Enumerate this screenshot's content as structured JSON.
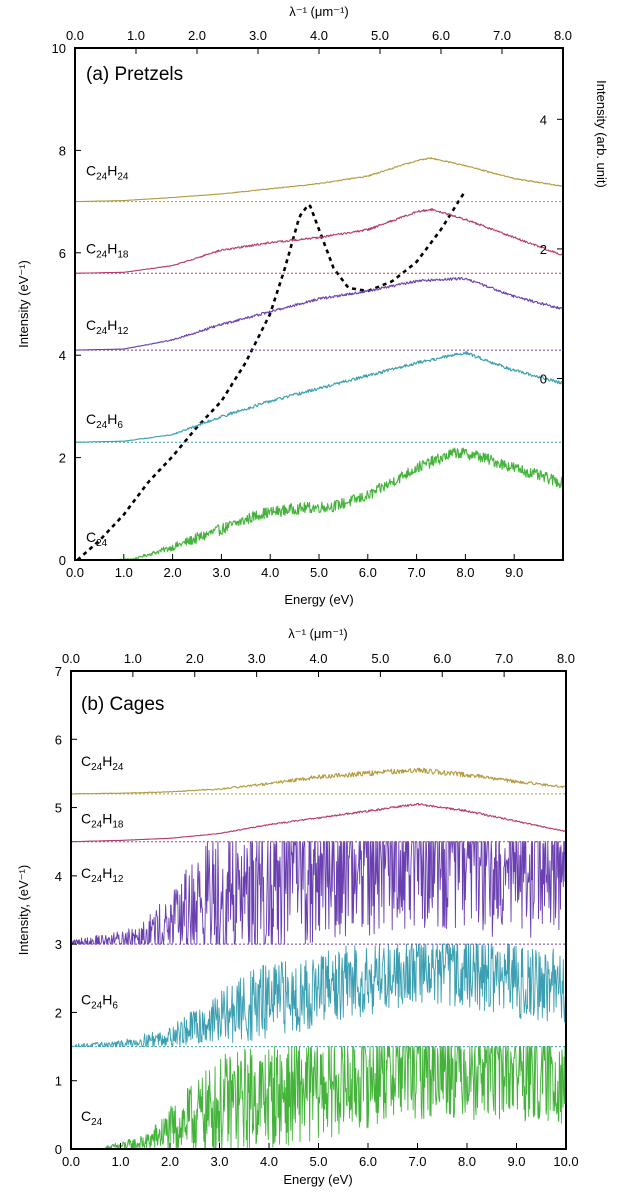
{
  "chart_data": [
    {
      "type": "line",
      "title": "(a) Pretzels",
      "xlabel": "Energy (eV)",
      "ylabel": "Intensity (eV⁻¹)",
      "top_xlabel": "λ⁻¹ (μm⁻¹)",
      "right_ylabel": "Intensity (arb. unit)",
      "xlim": [
        0,
        10
      ],
      "ylim": [
        0,
        10
      ],
      "x_ticks": [
        "0.0",
        "1.0",
        "2.0",
        "3.0",
        "4.0",
        "5.0",
        "6.0",
        "7.0",
        "8.0",
        "9.0"
      ],
      "y_ticks": [
        "0",
        "2",
        "4",
        "6",
        "8",
        "10"
      ],
      "top_ticks": [
        "0.0",
        "1.0",
        "2.0",
        "3.0",
        "4.0",
        "5.0",
        "6.0",
        "7.0",
        "8.0"
      ],
      "top_xlim": [
        0,
        8
      ],
      "right_ticks": [
        "0",
        "2",
        "4"
      ],
      "right_ylim": [
        -2.8,
        5.1
      ],
      "series": [
        {
          "name": "C24",
          "color": "#43b33a",
          "offset": 0,
          "noise": 0.22,
          "points": [
            [
              0.7,
              0
            ],
            [
              1.2,
              0.02
            ],
            [
              2,
              0.25
            ],
            [
              3,
              0.6
            ],
            [
              3.8,
              0.9
            ],
            [
              4.5,
              1
            ],
            [
              5.3,
              1.05
            ],
            [
              6,
              1.25
            ],
            [
              7,
              1.8
            ],
            [
              7.8,
              2.1
            ],
            [
              8.2,
              2.05
            ],
            [
              9,
              1.8
            ],
            [
              10,
              1.5
            ]
          ]
        },
        {
          "name": "C24H6",
          "color": "#3a9fb2",
          "offset": 2.3,
          "noise": 0.06,
          "points": [
            [
              0,
              0
            ],
            [
              1,
              0.02
            ],
            [
              2,
              0.15
            ],
            [
              3,
              0.5
            ],
            [
              4,
              0.8
            ],
            [
              5,
              1.05
            ],
            [
              6,
              1.3
            ],
            [
              7,
              1.55
            ],
            [
              8,
              1.75
            ],
            [
              9,
              1.4
            ],
            [
              10,
              1.15
            ]
          ]
        },
        {
          "name": "C24H12",
          "color": "#6a3fb0",
          "offset": 4.1,
          "noise": 0.05,
          "points": [
            [
              0,
              0
            ],
            [
              1,
              0.02
            ],
            [
              2,
              0.2
            ],
            [
              3,
              0.5
            ],
            [
              4,
              0.75
            ],
            [
              5,
              1
            ],
            [
              6,
              1.15
            ],
            [
              7,
              1.35
            ],
            [
              8,
              1.4
            ],
            [
              9,
              1.05
            ],
            [
              10,
              0.8
            ]
          ]
        },
        {
          "name": "C24H18",
          "color": "#b83a6e",
          "offset": 5.6,
          "noise": 0.04,
          "points": [
            [
              0,
              0
            ],
            [
              1,
              0.02
            ],
            [
              2,
              0.15
            ],
            [
              3,
              0.45
            ],
            [
              4,
              0.6
            ],
            [
              5,
              0.7
            ],
            [
              6,
              0.85
            ],
            [
              7,
              1.2
            ],
            [
              7.3,
              1.25
            ],
            [
              8,
              1.05
            ],
            [
              9,
              0.7
            ],
            [
              10,
              0.35
            ]
          ]
        },
        {
          "name": "C24H24",
          "color": "#b59a3d",
          "offset": 7.0,
          "noise": 0.025,
          "points": [
            [
              0,
              0
            ],
            [
              1,
              0.02
            ],
            [
              2,
              0.08
            ],
            [
              3,
              0.15
            ],
            [
              4,
              0.25
            ],
            [
              5,
              0.35
            ],
            [
              6,
              0.5
            ],
            [
              7,
              0.8
            ],
            [
              7.3,
              0.85
            ],
            [
              8,
              0.7
            ],
            [
              9,
              0.45
            ],
            [
              10,
              0.3
            ]
          ]
        }
      ],
      "extinction": {
        "axis": "right",
        "style": "dashed",
        "color": "#000000",
        "points": [
          [
            0.05,
            -2.8
          ],
          [
            0.5,
            -2.5
          ],
          [
            1,
            -2.1
          ],
          [
            1.5,
            -1.6
          ],
          [
            2,
            -1.2
          ],
          [
            2.5,
            -0.75
          ],
          [
            3,
            -0.35
          ],
          [
            3.5,
            0.25
          ],
          [
            4,
            1.0
          ],
          [
            4.3,
            1.7
          ],
          [
            4.6,
            2.5
          ],
          [
            4.8,
            2.7
          ],
          [
            5,
            2.3
          ],
          [
            5.3,
            1.7
          ],
          [
            5.6,
            1.4
          ],
          [
            6,
            1.35
          ],
          [
            6.5,
            1.5
          ],
          [
            7,
            1.8
          ],
          [
            7.5,
            2.3
          ],
          [
            8,
            2.9
          ]
        ]
      }
    },
    {
      "type": "line",
      "title": "(b) Cages",
      "xlabel": "Energy (eV)",
      "ylabel": "Intensity, (eV⁻¹)",
      "top_xlabel": "λ⁻¹ (μm⁻¹)",
      "xlim": [
        0,
        10
      ],
      "ylim": [
        0,
        7
      ],
      "x_ticks": [
        "0.0",
        "1.0",
        "2.0",
        "3.0",
        "4.0",
        "5.0",
        "6.0",
        "7.0",
        "8.0",
        "9.0",
        "10.0"
      ],
      "y_ticks": [
        "0",
        "1",
        "2",
        "3",
        "4",
        "5",
        "6",
        "7"
      ],
      "top_ticks": [
        "0.0",
        "1.0",
        "2.0",
        "3.0",
        "4.0",
        "5.0",
        "6.0",
        "7.0",
        "8.0"
      ],
      "top_xlim": [
        0,
        8
      ],
      "series": [
        {
          "name": "C24",
          "color": "#43b33a",
          "offset": 0,
          "noise": 0.7,
          "cap": 1.5,
          "points": [
            [
              0.7,
              0
            ],
            [
              1.5,
              0.05
            ],
            [
              2.5,
              0.3
            ],
            [
              3.5,
              0.5
            ],
            [
              4.5,
              0.6
            ],
            [
              5.5,
              0.75
            ],
            [
              6.5,
              0.95
            ],
            [
              7.5,
              1
            ],
            [
              8.5,
              0.95
            ],
            [
              10,
              0.85
            ]
          ]
        },
        {
          "name": "C24H6",
          "color": "#3a9fb2",
          "offset": 1.5,
          "noise": 0.5,
          "cap": 3.0,
          "points": [
            [
              0,
              0
            ],
            [
              1,
              0.02
            ],
            [
              2,
              0.1
            ],
            [
              3,
              0.3
            ],
            [
              4,
              0.5
            ],
            [
              5,
              0.65
            ],
            [
              6,
              0.85
            ],
            [
              7,
              1
            ],
            [
              8,
              0.95
            ],
            [
              9,
              0.8
            ],
            [
              10,
              0.7
            ]
          ]
        },
        {
          "name": "C24H12",
          "color": "#6a3fb0",
          "offset": 3.0,
          "noise": 1.0,
          "cap": 4.5,
          "points": [
            [
              0,
              0
            ],
            [
              1,
              0.03
            ],
            [
              2,
              0.15
            ],
            [
              3,
              0.45
            ],
            [
              4,
              0.6
            ],
            [
              5,
              0.75
            ],
            [
              6,
              0.9
            ],
            [
              7,
              1
            ],
            [
              8,
              0.95
            ],
            [
              9,
              0.8
            ],
            [
              10,
              0.7
            ]
          ]
        },
        {
          "name": "C24H18",
          "color": "#b83a6e",
          "offset": 4.5,
          "noise": 0.03,
          "points": [
            [
              0,
              0
            ],
            [
              1,
              0.02
            ],
            [
              2,
              0.05
            ],
            [
              3,
              0.12
            ],
            [
              4,
              0.25
            ],
            [
              5,
              0.35
            ],
            [
              6,
              0.45
            ],
            [
              7,
              0.55
            ],
            [
              8,
              0.45
            ],
            [
              9,
              0.3
            ],
            [
              10,
              0.15
            ]
          ]
        },
        {
          "name": "C24H24",
          "color": "#b59a3d",
          "offset": 5.2,
          "noise": 0.1,
          "points": [
            [
              0,
              0
            ],
            [
              1,
              0.01
            ],
            [
              2,
              0.03
            ],
            [
              3,
              0.07
            ],
            [
              4,
              0.15
            ],
            [
              5,
              0.25
            ],
            [
              6,
              0.3
            ],
            [
              7,
              0.35
            ],
            [
              8,
              0.28
            ],
            [
              9,
              0.18
            ],
            [
              10,
              0.1
            ]
          ]
        }
      ]
    }
  ]
}
